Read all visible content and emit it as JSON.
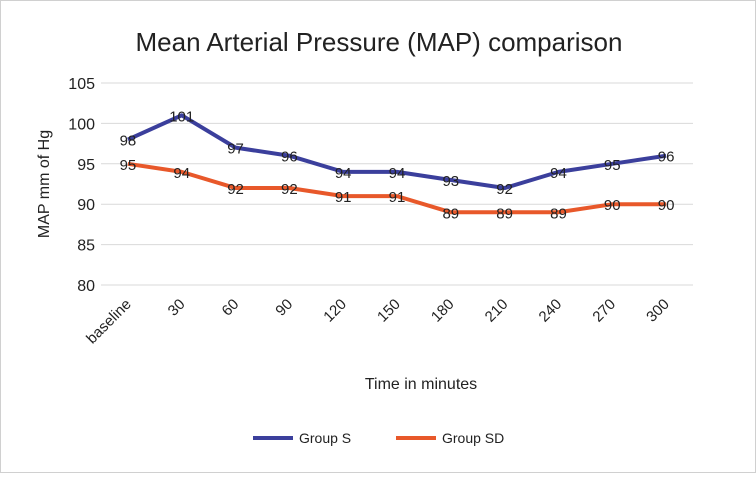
{
  "chart_data": {
    "type": "line",
    "title": "Mean Arterial Pressure (MAP) comparison",
    "xlabel": "Time in minutes",
    "ylabel": "MAP mm of Hg",
    "categories": [
      "baseline",
      "30",
      "60",
      "90",
      "120",
      "150",
      "180",
      "210",
      "240",
      "270",
      "300"
    ],
    "ylim": [
      80,
      105
    ],
    "yticks": [
      80,
      85,
      90,
      95,
      100,
      105
    ],
    "grid": true,
    "legend_position": "bottom",
    "series": [
      {
        "name": "Group S",
        "color": "#3b3f9c",
        "values": [
          98,
          101,
          97,
          96,
          94,
          94,
          93,
          92,
          94,
          95,
          96
        ]
      },
      {
        "name": "Group SD",
        "color": "#e8582a",
        "values": [
          95,
          94,
          92,
          92,
          91,
          91,
          89,
          89,
          89,
          90,
          90
        ]
      }
    ]
  }
}
